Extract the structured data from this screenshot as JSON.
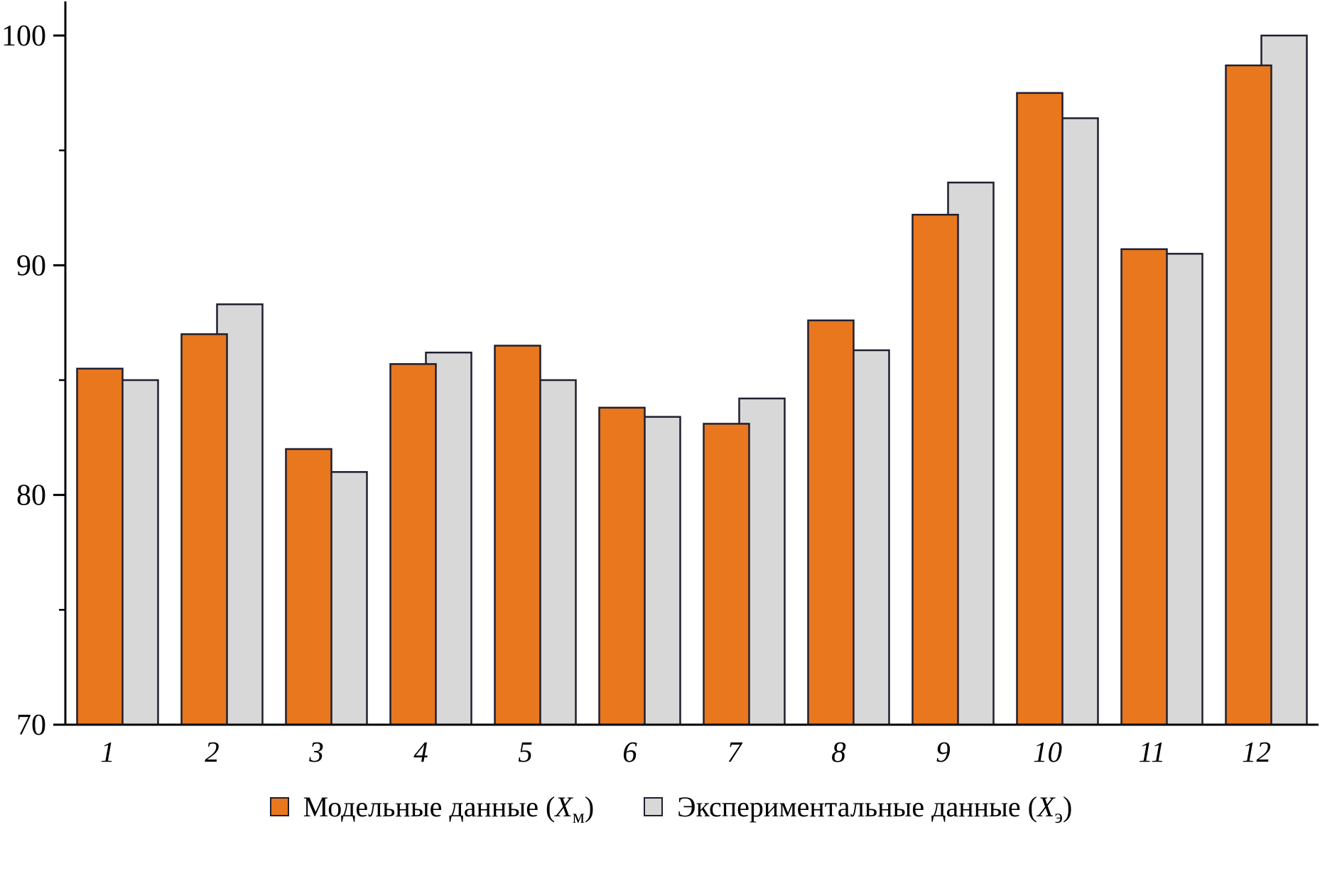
{
  "chart_data": {
    "type": "bar",
    "categories": [
      "1",
      "2",
      "3",
      "4",
      "5",
      "6",
      "7",
      "8",
      "9",
      "10",
      "11",
      "12"
    ],
    "series": [
      {
        "name": "Модельные данные (Xм)",
        "color": "#E8771E",
        "values": [
          85.5,
          87.0,
          82.0,
          85.7,
          86.5,
          83.8,
          83.1,
          87.6,
          92.2,
          97.5,
          90.7,
          98.7
        ]
      },
      {
        "name": "Экспериментальные данные (Xэ)",
        "color": "#D8D8D8",
        "values": [
          85.0,
          88.3,
          81.0,
          86.2,
          85.0,
          83.4,
          84.2,
          86.3,
          93.6,
          96.4,
          90.5,
          100.0
        ]
      }
    ],
    "title": "",
    "xlabel": "",
    "ylabel": "",
    "ylim": [
      70,
      100
    ],
    "yticks": [
      70,
      80,
      90,
      100
    ],
    "minor_tick_step": 5,
    "grid": false,
    "legend_position": "bottom"
  },
  "legend": {
    "series1": {
      "prefix": "Модельные данные (",
      "symbol": "X",
      "subscript": "м",
      "suffix": ")"
    },
    "series2": {
      "prefix": "Экспериментальные данные (",
      "symbol": "X",
      "subscript": "э",
      "suffix": ")"
    }
  },
  "colors": {
    "bar1": "#E8771E",
    "bar2": "#D8D8D8",
    "outline": "#1F1F30",
    "axis": "#000000",
    "text": "#000000"
  }
}
